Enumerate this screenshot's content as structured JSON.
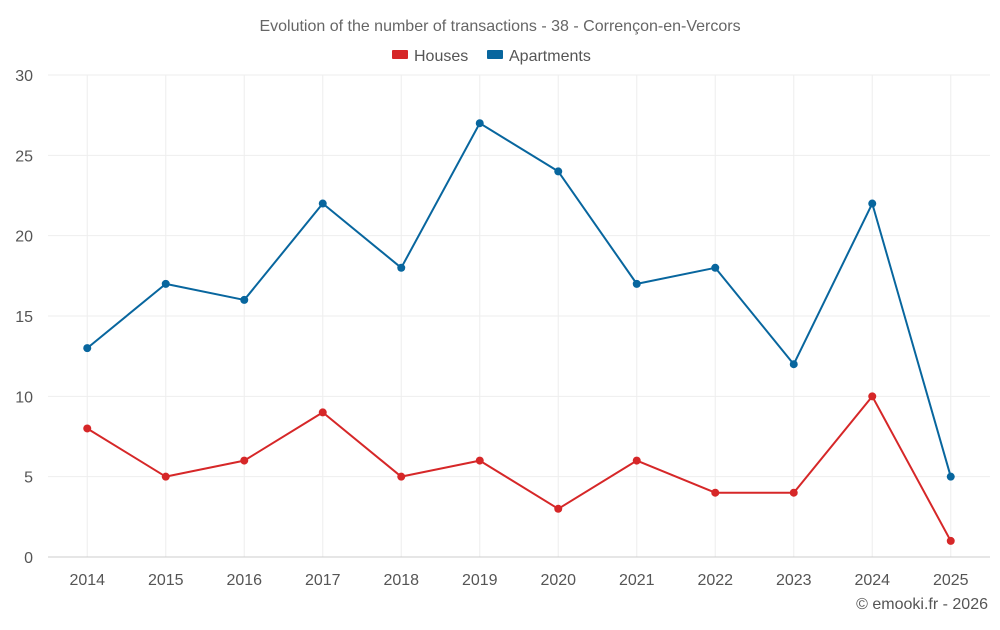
{
  "chart_data": {
    "type": "line",
    "title": "Evolution of the number of transactions - 38 - Corrençon-en-Vercors",
    "categories": [
      "2014",
      "2015",
      "2016",
      "2017",
      "2018",
      "2019",
      "2020",
      "2021",
      "2022",
      "2023",
      "2024",
      "2025"
    ],
    "series": [
      {
        "name": "Houses",
        "color": "#d62728",
        "values": [
          8,
          5,
          6,
          9,
          5,
          6,
          3,
          6,
          4,
          4,
          10,
          1
        ]
      },
      {
        "name": "Apartments",
        "color": "#08669e",
        "values": [
          13,
          17,
          16,
          22,
          18,
          27,
          24,
          17,
          18,
          12,
          22,
          5
        ]
      }
    ],
    "ylim": [
      0,
      30
    ],
    "yticks": [
      0,
      5,
      10,
      15,
      20,
      25,
      30
    ],
    "legend_position": "top-center",
    "grid": true
  },
  "credit": "© emooki.fr - 2026"
}
